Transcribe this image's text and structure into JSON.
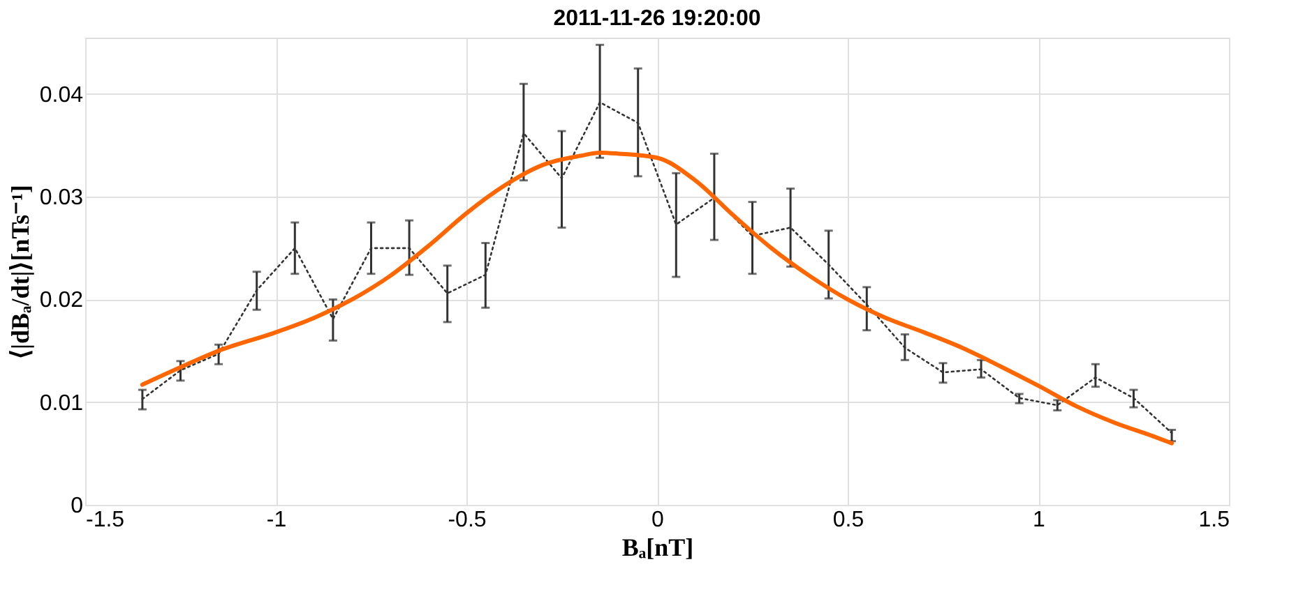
{
  "chart_data": {
    "type": "line",
    "title": "2011-11-26   19:20:00",
    "xlabel": "Bₐ[nT]",
    "ylabel": "⟨|dBₐ/dt|⟩[nTs⁻¹]",
    "xlim": [
      -1.5,
      1.5
    ],
    "xticks": [
      -1.5,
      -1,
      -0.5,
      0,
      0.5,
      1,
      1.5
    ],
    "ylim": [
      0,
      0.0455
    ],
    "yticks": [
      0,
      0.01,
      0.02,
      0.03,
      0.04
    ],
    "grid": true,
    "marker": "none",
    "series": [
      {
        "color": "#333333",
        "line_style": "dotted",
        "x": [
          -1.35,
          -1.25,
          -1.15,
          -1.05,
          -0.95,
          -0.85,
          -0.75,
          -0.65,
          -0.55,
          -0.45,
          -0.35,
          -0.25,
          -0.15,
          -0.05,
          0.05,
          0.15,
          0.25,
          0.35,
          0.45,
          0.55,
          0.65,
          0.75,
          0.85,
          0.95,
          1.05,
          1.15,
          1.25,
          1.35
        ],
        "values": [
          0.0103,
          0.0131,
          0.0147,
          0.0209,
          0.025,
          0.0181,
          0.025,
          0.025,
          0.0206,
          0.0224,
          0.0362,
          0.0318,
          0.0392,
          0.0372,
          0.0273,
          0.0299,
          0.0262,
          0.027,
          0.0234,
          0.0195,
          0.0153,
          0.0129,
          0.0132,
          0.0104,
          0.0097,
          0.0124,
          0.0104,
          0.007
        ],
        "errors": [
          [
            0.0093,
            0.0112
          ],
          [
            0.0121,
            0.014
          ],
          [
            0.0137,
            0.0156
          ],
          [
            0.019,
            0.0227
          ],
          [
            0.0225,
            0.0275
          ],
          [
            0.016,
            0.02
          ],
          [
            0.0225,
            0.0275
          ],
          [
            0.0224,
            0.0277
          ],
          [
            0.0178,
            0.0233
          ],
          [
            0.0192,
            0.0255
          ],
          [
            0.0316,
            0.041
          ],
          [
            0.027,
            0.0364
          ],
          [
            0.0338,
            0.0448
          ],
          [
            0.032,
            0.0425
          ],
          [
            0.0222,
            0.0323
          ],
          [
            0.0258,
            0.0342
          ],
          [
            0.0225,
            0.0295
          ],
          [
            0.0232,
            0.0308
          ],
          [
            0.0201,
            0.0267
          ],
          [
            0.017,
            0.0212
          ],
          [
            0.0141,
            0.0166
          ],
          [
            0.0119,
            0.0138
          ],
          [
            0.0124,
            0.0141
          ],
          [
            0.0099,
            0.0108
          ],
          [
            0.0092,
            0.0102
          ],
          [
            0.0115,
            0.0137
          ],
          [
            0.0095,
            0.0112
          ],
          [
            0.0062,
            0.0073
          ]
        ]
      },
      {
        "color": "#ff6600",
        "line_style": "solid",
        "x": [
          -1.35,
          -1.25,
          -1.15,
          -1.0,
          -0.9,
          -0.8,
          -0.7,
          -0.6,
          -0.5,
          -0.4,
          -0.3,
          -0.2,
          -0.15,
          -0.1,
          0.0,
          0.1,
          0.2,
          0.3,
          0.4,
          0.5,
          0.6,
          0.7,
          0.8,
          0.9,
          1.0,
          1.1,
          1.2,
          1.3,
          1.35
        ],
        "values": [
          0.0117,
          0.0134,
          0.015,
          0.0168,
          0.0182,
          0.02,
          0.0223,
          0.0252,
          0.0284,
          0.0311,
          0.0331,
          0.034,
          0.0343,
          0.0342,
          0.0338,
          0.0316,
          0.0282,
          0.025,
          0.0223,
          0.02,
          0.0182,
          0.0168,
          0.0153,
          0.0135,
          0.0116,
          0.0096,
          0.008,
          0.0067,
          0.006
        ]
      }
    ]
  }
}
